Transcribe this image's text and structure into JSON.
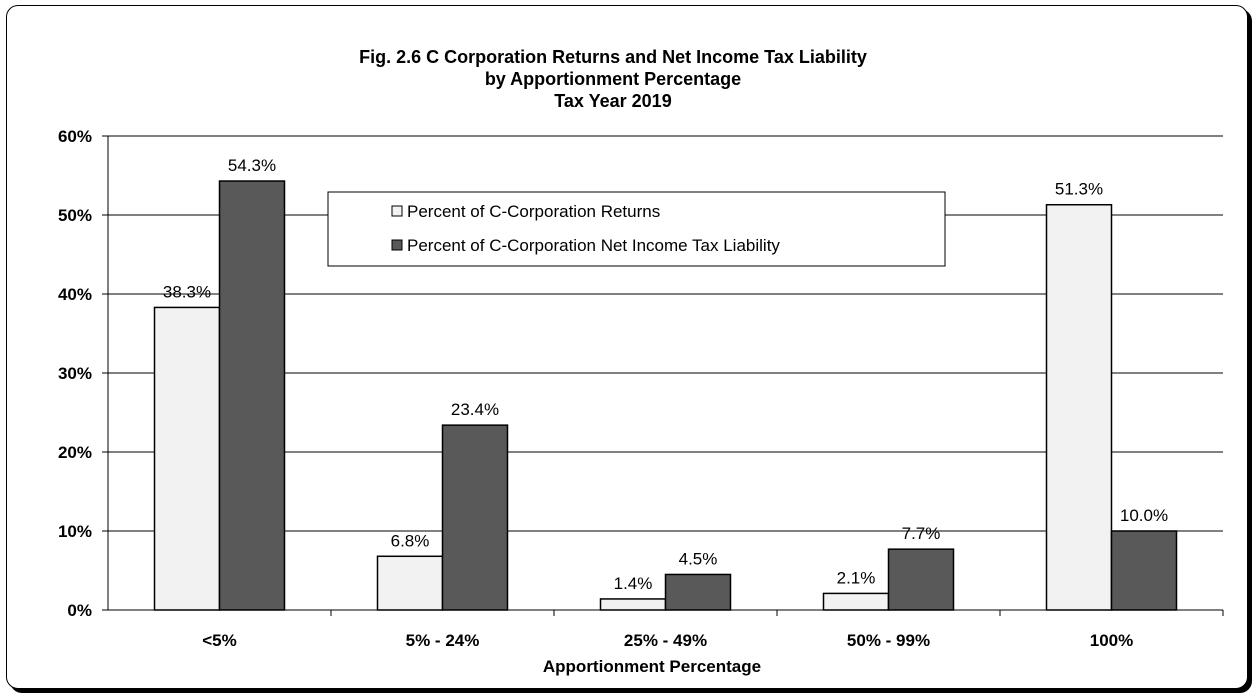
{
  "chart_data": {
    "type": "bar",
    "title": [
      "Fig. 2.6  C Corporation Returns and Net Income Tax Liability",
      "by Apportionment Percentage",
      "Tax Year 2019"
    ],
    "xlabel": "Apportionment Percentage",
    "ylabel": "",
    "categories": [
      "<5%",
      "5% - 24%",
      "25% - 49%",
      "50% - 99%",
      "100%"
    ],
    "ylim": [
      0,
      60
    ],
    "yticks": [
      "0%",
      "10%",
      "20%",
      "30%",
      "40%",
      "50%",
      "60%"
    ],
    "grid": true,
    "legend_position": "top-center",
    "series": [
      {
        "name": "Percent of C-Corporation Returns",
        "values": [
          38.3,
          6.8,
          1.4,
          2.1,
          51.3
        ],
        "labels": [
          "38.3%",
          "6.8%",
          "1.4%",
          "2.1%",
          "51.3%"
        ],
        "color": "#f2f2f2"
      },
      {
        "name": "Percent of C-Corporation Net Income Tax Liability",
        "values": [
          54.3,
          23.4,
          4.5,
          7.7,
          10.0
        ],
        "labels": [
          "54.3%",
          "23.4%",
          "4.5%",
          "7.7%",
          "10.0%"
        ],
        "color": "#595959"
      }
    ]
  }
}
